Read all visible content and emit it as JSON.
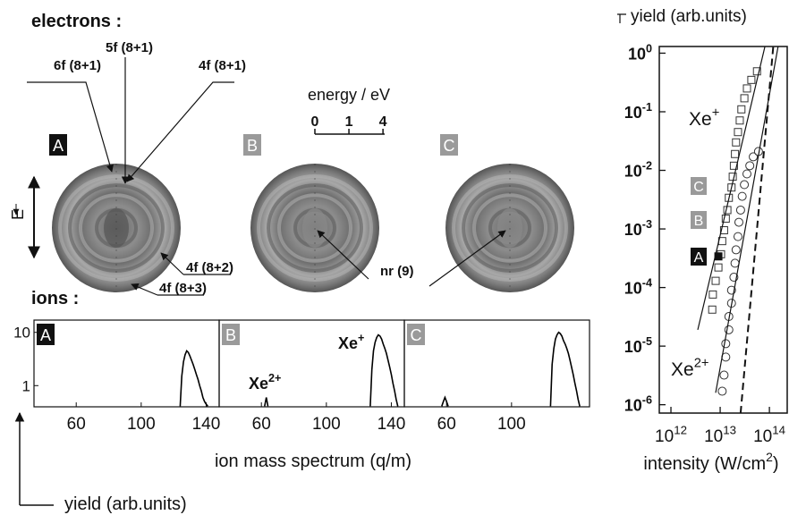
{
  "figure": {
    "electrons_label": "electrons :",
    "ions_label": "ions :",
    "energy_axis": {
      "title": "energy / eV",
      "lim": [
        0,
        4.2
      ],
      "ticks": [
        0,
        1,
        4
      ]
    },
    "image_labels": [
      {
        "text": "A",
        "fill": "#111111"
      },
      {
        "text": "B",
        "fill": "#9a9a9a"
      },
      {
        "text": "C",
        "fill": "#9a9a9a"
      }
    ],
    "field_label": "E",
    "peaks": [
      "6f (8+1)",
      "5f (8+1)",
      "4f (8+1)",
      "4f (8+2)",
      "4f (8+3)",
      "nr (9)"
    ],
    "ion_x_label": "ion mass spectrum (q/m)",
    "ion_y_label": "yield (arb.units)"
  },
  "chart_data": [
    {
      "type": "line",
      "panel_label": "A",
      "label_fill": "#111111",
      "log_y": true,
      "xlim": [
        34,
        148
      ],
      "xticks": [
        60,
        100,
        140
      ],
      "ylim": [
        0.4,
        17
      ],
      "yticks": [
        10,
        1
      ],
      "series": [
        {
          "color": "#000000",
          "x": [
            124,
            125,
            126,
            127,
            128,
            129,
            130,
            131,
            132,
            133,
            134,
            135,
            136,
            137,
            138,
            139,
            140,
            141
          ],
          "values": [
            0.41,
            1.5,
            2.8,
            3.8,
            4.5,
            4.2,
            3.6,
            3.0,
            2.5,
            2.0,
            1.6,
            1.3,
            1.0,
            0.8,
            0.6,
            0.5,
            0.45,
            0.41
          ]
        }
      ]
    },
    {
      "type": "line",
      "panel_label": "B",
      "label_fill": "#9a9a9a",
      "log_y": true,
      "xlim": [
        34,
        148
      ],
      "xticks": [
        60,
        100,
        140
      ],
      "ylim": [
        0.4,
        17
      ],
      "annotations": [
        {
          "text": "Xe",
          "sup": "2+"
        },
        {
          "text": "Xe",
          "sup": "+"
        }
      ],
      "series": [
        {
          "color": "#000000",
          "x": [
            127,
            128,
            129,
            130,
            131,
            132,
            133,
            134,
            135,
            136,
            137,
            138,
            139,
            140,
            141,
            142,
            143,
            144
          ],
          "values": [
            0.41,
            2.0,
            4.5,
            6.5,
            8.0,
            9.0,
            8.5,
            7.5,
            6.0,
            5.0,
            4.0,
            3.0,
            2.2,
            1.6,
            1.1,
            0.8,
            0.55,
            0.41
          ]
        },
        {
          "color": "#000000",
          "x": [
            62,
            63,
            64
          ],
          "values": [
            0.41,
            0.6,
            0.41
          ]
        }
      ]
    },
    {
      "type": "line",
      "panel_label": "C",
      "label_fill": "#9a9a9a",
      "log_y": true,
      "xlim": [
        34,
        148
      ],
      "xticks": [
        60,
        100
      ],
      "ylim": [
        0.4,
        17
      ],
      "series": [
        {
          "color": "#000000",
          "x": [
            124,
            125,
            126,
            127,
            128,
            129,
            130,
            131,
            132,
            133,
            134,
            135,
            136,
            137,
            138,
            139,
            140,
            141,
            142
          ],
          "values": [
            0.41,
            2.5,
            5.0,
            7.5,
            9.0,
            10.0,
            9.5,
            8.5,
            7.0,
            6.0,
            5.0,
            4.0,
            3.0,
            2.2,
            1.6,
            1.1,
            0.8,
            0.55,
            0.41
          ]
        },
        {
          "color": "#000000",
          "x": [
            57,
            58,
            59,
            60,
            61
          ],
          "values": [
            0.41,
            0.5,
            0.6,
            0.5,
            0.41
          ]
        }
      ]
    },
    {
      "type": "scatter",
      "log_x": true,
      "log_y": true,
      "title": "yield (arb.units)",
      "x_label": {
        "text": "intensity (W/cm",
        "sup": "2",
        "tail": ")"
      },
      "xlim": [
        580000000000.0,
        230000000000000.0
      ],
      "ylim": [
        7.2e-07,
        1.3
      ],
      "xticks": [
        {
          "value": 1000000000000.0,
          "label": "10",
          "sup": "12"
        },
        {
          "value": 10000000000000.0,
          "label": "10",
          "sup": "13"
        },
        {
          "value": 100000000000000.0,
          "label": "10",
          "sup": "14"
        }
      ],
      "yticks": [
        {
          "value": 1,
          "label": "10",
          "sup": "0"
        },
        {
          "value": 0.1,
          "label": "10",
          "sup": "-1"
        },
        {
          "value": 0.01,
          "label": "10",
          "sup": "-2"
        },
        {
          "value": 0.001,
          "label": "10",
          "sup": "-3"
        },
        {
          "value": 0.0001,
          "label": "10",
          "sup": "-4"
        },
        {
          "value": 1e-05,
          "label": "10",
          "sup": "-5"
        },
        {
          "value": 1e-06,
          "label": "10",
          "sup": "-6"
        }
      ],
      "annotations": [
        {
          "text": "Xe",
          "sup": "+"
        },
        {
          "text": "Xe",
          "sup": "2+"
        }
      ],
      "markers": [
        "C",
        "B",
        "A"
      ],
      "series": [
        {
          "marker": "square",
          "color": "#333333",
          "x": [
            6900000000000.0,
            7100000000000.0,
            8100000000000.0,
            9200000000000.0,
            10400000000000.0,
            11000000000000.0,
            12000000000000.0,
            13000000000000.0,
            14000000000000.0,
            15000000000000.0,
            17000000000000.0,
            18000000000000.0,
            19000000000000.0,
            20000000000000.0,
            21000000000000.0,
            23000000000000.0,
            25000000000000.0,
            27000000000000.0,
            31000000000000.0,
            35000000000000.0,
            43000000000000.0,
            56000000000000.0
          ],
          "values": [
            4.2e-05,
            7.6e-05,
            0.00013,
            0.00022,
            0.00037,
            0.00062,
            0.00095,
            0.0015,
            0.0021,
            0.0034,
            0.0051,
            0.0078,
            0.012,
            0.019,
            0.03,
            0.045,
            0.071,
            0.11,
            0.17,
            0.25,
            0.35,
            0.49
          ]
        },
        {
          "marker": "circle",
          "color": "#333333",
          "x": [
            11000000000000.0,
            12000000000000.0,
            13000000000000.0,
            13000000000000.0,
            15000000000000.0,
            15000000000000.0,
            17000000000000.0,
            17000000000000.0,
            19000000000000.0,
            20000000000000.0,
            21000000000000.0,
            23000000000000.0,
            24000000000000.0,
            26000000000000.0,
            28000000000000.0,
            31000000000000.0,
            35000000000000.0,
            40000000000000.0,
            47000000000000.0,
            60000000000000.0
          ],
          "values": [
            1.7e-06,
            3.2e-06,
            6.5e-06,
            1.1e-05,
            1.9e-05,
            3.2e-05,
            5.4e-05,
            9e-05,
            0.00015,
            0.00026,
            0.00044,
            0.00074,
            0.0013,
            0.0021,
            0.0036,
            0.0057,
            0.0087,
            0.012,
            0.017,
            0.021
          ]
        },
        {
          "marker": "filled-square",
          "color": "#111111",
          "x": [
            9200000000000.0
          ],
          "values": [
            0.00034
          ]
        },
        {
          "marker": "none",
          "color": "#111111",
          "x": [
            3500000000000.0,
            81000000000000.0
          ],
          "values": [
            1.9e-05,
            1.3
          ]
        },
        {
          "marker": "none",
          "color": "#111111",
          "x": [
            8100000000000.0,
            150000000000000.0
          ],
          "values": [
            1.6e-06,
            1.3
          ]
        },
        {
          "marker": "none",
          "dash": "8 5",
          "width": 2,
          "color": "#111111",
          "x": [
            26000000000000.0,
            120000000000000.0
          ],
          "values": [
            7.2e-07,
            1.3
          ]
        }
      ]
    }
  ]
}
